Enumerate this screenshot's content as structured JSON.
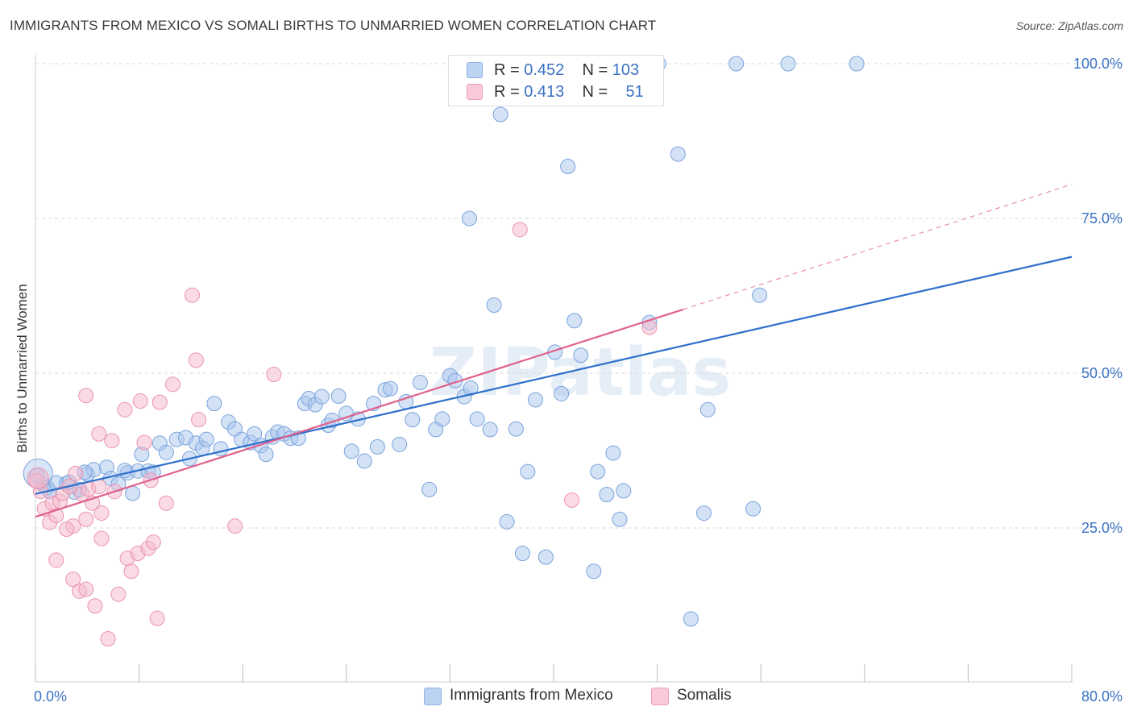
{
  "chart_data": {
    "type": "scatter",
    "title": "IMMIGRANTS FROM MEXICO VS SOMALI BIRTHS TO UNMARRIED WOMEN CORRELATION CHART",
    "source": "Source: ZipAtlas.com",
    "xlabel": "",
    "ylabel": "Births to Unmarried Women",
    "xlim": [
      0,
      80
    ],
    "ylim": [
      0,
      105
    ],
    "x_tick_labels": [
      "0.0%",
      "80.0%"
    ],
    "y_ticks": [
      25,
      50,
      75,
      100
    ],
    "y_tick_labels": [
      "25.0%",
      "50.0%",
      "75.0%",
      "100.0%"
    ],
    "watermark": "ZIPatlas",
    "colors": {
      "mexico_fill": "#a9c6ee",
      "mexico_stroke": "#7aa3dc",
      "mexico_line": "#2d6fcc",
      "somali_fill": "#f6b8cb",
      "somali_stroke": "#ea93ae",
      "somali_line": "#e0608c",
      "grid": "#d9d9d9",
      "axis_label": "#3b72c4"
    },
    "legend_top": [
      {
        "r_label": "R = ",
        "r_value": "0.452",
        "n_label": "N = ",
        "n_value": "103"
      },
      {
        "r_label": "R = ",
        "r_value": "0.413",
        "n_label": "N = ",
        "n_value": "51"
      }
    ],
    "series": [
      {
        "name": "Immigrants from Mexico",
        "trend": {
          "x0": 0,
          "y0": 30.5,
          "x1": 80,
          "y1": 68.8
        },
        "points": [
          [
            0.1,
            33.5
          ],
          [
            0.6,
            32.0
          ],
          [
            0.9,
            31.5
          ],
          [
            1.1,
            30.9
          ],
          [
            1.6,
            32.3
          ],
          [
            2.4,
            32.2
          ],
          [
            2.6,
            32.4
          ],
          [
            3.0,
            30.8
          ],
          [
            3.4,
            31.2
          ],
          [
            4.0,
            33.7
          ],
          [
            4.5,
            34.4
          ],
          [
            5.5,
            34.8
          ],
          [
            5.8,
            33.0
          ],
          [
            6.4,
            32.1
          ],
          [
            7.1,
            33.9
          ],
          [
            7.5,
            30.6
          ],
          [
            7.9,
            34.2
          ],
          [
            8.2,
            36.9
          ],
          [
            8.7,
            34.2
          ],
          [
            9.6,
            38.7
          ],
          [
            10.1,
            37.2
          ],
          [
            10.9,
            39.3
          ],
          [
            11.6,
            39.6
          ],
          [
            11.9,
            36.2
          ],
          [
            12.4,
            38.7
          ],
          [
            12.9,
            37.9
          ],
          [
            13.2,
            39.3
          ],
          [
            13.8,
            45.1
          ],
          [
            14.3,
            37.8
          ],
          [
            14.9,
            42.1
          ],
          [
            15.4,
            41.0
          ],
          [
            15.9,
            39.3
          ],
          [
            16.6,
            38.8
          ],
          [
            16.9,
            40.2
          ],
          [
            17.4,
            38.3
          ],
          [
            17.8,
            36.9
          ],
          [
            18.3,
            39.7
          ],
          [
            18.7,
            40.5
          ],
          [
            19.2,
            40.2
          ],
          [
            19.7,
            39.5
          ],
          [
            20.3,
            39.5
          ],
          [
            20.8,
            45.1
          ],
          [
            21.1,
            45.9
          ],
          [
            21.6,
            44.9
          ],
          [
            22.1,
            46.2
          ],
          [
            22.6,
            41.6
          ],
          [
            22.9,
            42.4
          ],
          [
            23.4,
            46.3
          ],
          [
            24.0,
            43.5
          ],
          [
            24.4,
            37.4
          ],
          [
            24.9,
            42.6
          ],
          [
            25.4,
            35.8
          ],
          [
            26.1,
            45.1
          ],
          [
            26.4,
            38.1
          ],
          [
            27.0,
            47.3
          ],
          [
            27.4,
            47.5
          ],
          [
            28.1,
            38.5
          ],
          [
            28.6,
            45.4
          ],
          [
            29.1,
            42.5
          ],
          [
            29.7,
            48.5
          ],
          [
            30.4,
            31.2
          ],
          [
            30.9,
            40.9
          ],
          [
            31.4,
            42.6
          ],
          [
            32.0,
            49.6
          ],
          [
            32.4,
            48.8
          ],
          [
            33.1,
            46.2
          ],
          [
            33.6,
            47.6
          ],
          [
            34.1,
            42.6
          ],
          [
            35.1,
            40.9
          ],
          [
            35.4,
            61.0
          ],
          [
            35.9,
            91.8
          ],
          [
            36.4,
            26.0
          ],
          [
            37.1,
            41.0
          ],
          [
            37.6,
            20.9
          ],
          [
            38.0,
            34.1
          ],
          [
            38.6,
            45.7
          ],
          [
            39.4,
            20.3
          ],
          [
            40.1,
            53.4
          ],
          [
            40.6,
            46.7
          ],
          [
            41.1,
            83.4
          ],
          [
            41.6,
            58.5
          ],
          [
            42.1,
            52.9
          ],
          [
            43.1,
            18.0
          ],
          [
            43.4,
            34.1
          ],
          [
            44.1,
            30.4
          ],
          [
            44.6,
            37.1
          ],
          [
            45.1,
            26.4
          ],
          [
            45.4,
            31.0
          ],
          [
            47.4,
            58.2
          ],
          [
            48.1,
            100.0
          ],
          [
            49.6,
            85.4
          ],
          [
            50.6,
            10.3
          ],
          [
            51.6,
            27.4
          ],
          [
            51.9,
            44.1
          ],
          [
            54.1,
            100.0
          ],
          [
            55.4,
            28.1
          ],
          [
            55.9,
            62.6
          ],
          [
            58.1,
            100.0
          ],
          [
            63.4,
            100.0
          ],
          [
            33.5,
            75.0
          ],
          [
            3.8,
            34.0
          ],
          [
            6.9,
            34.3
          ],
          [
            9.1,
            34.0
          ]
        ]
      },
      {
        "name": "Somalis",
        "trend": {
          "x0": 0,
          "y0": 26.8,
          "x1": 50,
          "y1": 60.3
        },
        "trend_ext": {
          "x0": 50,
          "y0": 60.3,
          "x1": 80,
          "y1": 80.5
        },
        "points": [
          [
            0.1,
            32.6
          ],
          [
            0.4,
            30.9
          ],
          [
            0.7,
            28.1
          ],
          [
            1.1,
            25.9
          ],
          [
            1.3,
            29.0
          ],
          [
            1.6,
            27.0
          ],
          [
            1.9,
            29.3
          ],
          [
            2.1,
            30.6
          ],
          [
            2.6,
            31.7
          ],
          [
            2.9,
            25.3
          ],
          [
            3.1,
            33.8
          ],
          [
            3.6,
            30.5
          ],
          [
            3.9,
            26.4
          ],
          [
            4.1,
            31.3
          ],
          [
            4.4,
            29.0
          ],
          [
            4.9,
            31.7
          ],
          [
            1.6,
            19.8
          ],
          [
            2.9,
            16.7
          ],
          [
            3.4,
            14.8
          ],
          [
            3.9,
            15.1
          ],
          [
            4.6,
            12.4
          ],
          [
            5.1,
            27.4
          ],
          [
            5.1,
            23.3
          ],
          [
            5.6,
            7.1
          ],
          [
            5.9,
            39.1
          ],
          [
            6.4,
            14.3
          ],
          [
            6.9,
            44.1
          ],
          [
            7.1,
            20.1
          ],
          [
            7.4,
            18.0
          ],
          [
            7.9,
            20.9
          ],
          [
            8.1,
            45.5
          ],
          [
            8.4,
            38.8
          ],
          [
            8.7,
            21.7
          ],
          [
            9.1,
            22.7
          ],
          [
            9.4,
            10.4
          ],
          [
            9.6,
            45.3
          ],
          [
            10.1,
            29.0
          ],
          [
            10.6,
            48.2
          ],
          [
            3.9,
            46.4
          ],
          [
            4.9,
            40.2
          ],
          [
            12.1,
            62.6
          ],
          [
            12.4,
            52.1
          ],
          [
            12.6,
            42.5
          ],
          [
            15.4,
            25.3
          ],
          [
            18.4,
            49.8
          ],
          [
            37.4,
            73.2
          ],
          [
            41.4,
            29.5
          ],
          [
            47.4,
            57.4
          ],
          [
            2.4,
            24.8
          ],
          [
            6.1,
            30.9
          ],
          [
            8.9,
            32.7
          ]
        ]
      }
    ]
  }
}
